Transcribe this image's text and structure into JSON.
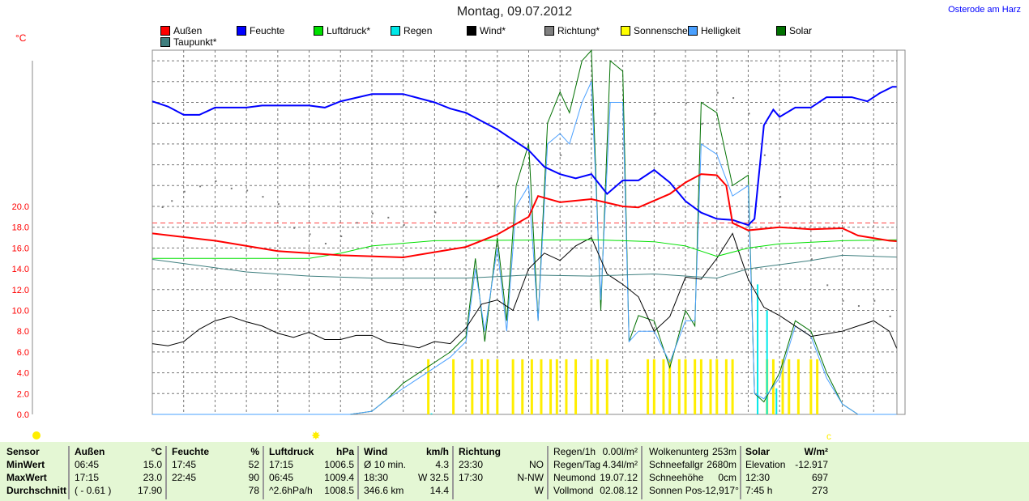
{
  "title": "Montag, 09.07.2012",
  "location": "Osterode am Harz",
  "chart_data": {
    "type": "line",
    "ylabel": "°C",
    "ylim": [
      0,
      35
    ],
    "xlim_hours": [
      0,
      24
    ],
    "yticks": [
      "0.0",
      "2.0",
      "4.0",
      "6.0",
      "8.0",
      "10.0",
      "12.0",
      "14.0",
      "16.0",
      "18.0",
      "20.0"
    ],
    "reference_line": 18.4,
    "legend": [
      {
        "name": "Außen",
        "color": "#ff0000"
      },
      {
        "name": "Feuchte",
        "color": "#0000ff"
      },
      {
        "name": "Luftdruck*",
        "color": "#00e000"
      },
      {
        "name": "Regen",
        "color": "#00e8e8"
      },
      {
        "name": "Wind*",
        "color": "#000000"
      },
      {
        "name": "Richtung*",
        "color": "#808080"
      },
      {
        "name": "Sonnenschein",
        "color": "#ffff00"
      },
      {
        "name": "Helligkeit",
        "color": "#4aa0ff"
      },
      {
        "name": "Solar",
        "color": "#007000"
      },
      {
        "name": "Taupunkt*",
        "color": "#3f7f7f"
      }
    ],
    "series": [
      {
        "name": "Außen",
        "color": "#ff0000",
        "width": 2,
        "points": [
          [
            0,
            17.4
          ],
          [
            2,
            16.7
          ],
          [
            4,
            15.7
          ],
          [
            6,
            15.3
          ],
          [
            8,
            15.1
          ],
          [
            10,
            16.1
          ],
          [
            11,
            17.3
          ],
          [
            12,
            19.0
          ],
          [
            12.3,
            21
          ],
          [
            13,
            20.4
          ],
          [
            14,
            20.7
          ],
          [
            15,
            20.0
          ],
          [
            15.5,
            19.9
          ],
          [
            16.5,
            21.2
          ],
          [
            17,
            22.3
          ],
          [
            17.5,
            23.1
          ],
          [
            18,
            23
          ],
          [
            18.3,
            22
          ],
          [
            18.5,
            18.4
          ],
          [
            19,
            17.7
          ],
          [
            20,
            18.0
          ],
          [
            21,
            17.8
          ],
          [
            22,
            17.9
          ],
          [
            22.5,
            17.2
          ],
          [
            23.5,
            16.7
          ],
          [
            24,
            16.6
          ]
        ]
      },
      {
        "name": "Feuchte",
        "color": "#0000ff",
        "width": 2,
        "points": [
          [
            0,
            30.1
          ],
          [
            0.5,
            29.6
          ],
          [
            1,
            28.8
          ],
          [
            1.5,
            28.8
          ],
          [
            2,
            29.5
          ],
          [
            3,
            29.5
          ],
          [
            3.5,
            29.7
          ],
          [
            5,
            29.7
          ],
          [
            5.5,
            29.5
          ],
          [
            6,
            30.1
          ],
          [
            7,
            30.8
          ],
          [
            8,
            30.8
          ],
          [
            8.5,
            30.4
          ],
          [
            9,
            30.0
          ],
          [
            9.5,
            29.4
          ],
          [
            10,
            29.0
          ],
          [
            10.5,
            28.2
          ],
          [
            11,
            27.4
          ],
          [
            12,
            25.4
          ],
          [
            12.5,
            23.8
          ],
          [
            13,
            23.1
          ],
          [
            13.5,
            22.7
          ],
          [
            14,
            23.1
          ],
          [
            14.5,
            21.2
          ],
          [
            15,
            22.5
          ],
          [
            15.5,
            22.5
          ],
          [
            16,
            23.5
          ],
          [
            16.5,
            22.3
          ],
          [
            17,
            20.5
          ],
          [
            17.5,
            19.4
          ],
          [
            18,
            18.8
          ],
          [
            18.5,
            18.7
          ],
          [
            19,
            18.2
          ],
          [
            19.2,
            18.8
          ],
          [
            19.5,
            27.8
          ],
          [
            19.8,
            29.3
          ],
          [
            20,
            28.6
          ],
          [
            20.5,
            29.5
          ],
          [
            21,
            29.5
          ],
          [
            21.5,
            30.5
          ],
          [
            22.3,
            30.5
          ],
          [
            22.8,
            30.1
          ],
          [
            23.2,
            30.9
          ],
          [
            23.6,
            31.5
          ],
          [
            24,
            31.5
          ]
        ]
      },
      {
        "name": "Luftdruck*",
        "color": "#00e000",
        "width": 1,
        "points": [
          [
            0,
            15.0
          ],
          [
            5,
            15.0
          ],
          [
            6,
            15.5
          ],
          [
            7,
            16.2
          ],
          [
            9,
            16.7
          ],
          [
            14,
            16.8
          ],
          [
            16,
            16.6
          ],
          [
            17,
            16.2
          ],
          [
            18,
            15.2
          ],
          [
            19,
            16.0
          ],
          [
            20,
            16.4
          ],
          [
            22,
            16.7
          ],
          [
            24,
            16.8
          ]
        ]
      },
      {
        "name": "Taupunkt*",
        "color": "#3f7f7f",
        "width": 1,
        "points": [
          [
            0,
            14.9
          ],
          [
            1,
            14.5
          ],
          [
            3,
            13.7
          ],
          [
            5,
            13.3
          ],
          [
            7,
            13.1
          ],
          [
            10,
            13.1
          ],
          [
            12,
            13.4
          ],
          [
            14,
            13.3
          ],
          [
            16,
            13.5
          ],
          [
            18,
            13.1
          ],
          [
            19,
            14.0
          ],
          [
            21,
            14.8
          ],
          [
            22,
            15.3
          ],
          [
            24,
            15.1
          ]
        ]
      },
      {
        "name": "Wind*",
        "color": "#000000",
        "width": 1,
        "points": [
          [
            0,
            6.8
          ],
          [
            0.5,
            6.6
          ],
          [
            1,
            7.0
          ],
          [
            1.5,
            8.2
          ],
          [
            2,
            9.0
          ],
          [
            2.5,
            9.4
          ],
          [
            3,
            8.9
          ],
          [
            3.5,
            8.5
          ],
          [
            4,
            7.8
          ],
          [
            4.5,
            7.4
          ],
          [
            5,
            7.9
          ],
          [
            5.5,
            7.2
          ],
          [
            6,
            7.2
          ],
          [
            6.5,
            7.6
          ],
          [
            7,
            7.6
          ],
          [
            7.5,
            6.9
          ],
          [
            8,
            6.7
          ],
          [
            8.5,
            6.4
          ],
          [
            9,
            7.0
          ],
          [
            9.5,
            6.8
          ],
          [
            10,
            8.3
          ],
          [
            10.5,
            10.6
          ],
          [
            11,
            11.0
          ],
          [
            11.5,
            10.0
          ],
          [
            12,
            14.0
          ],
          [
            12.5,
            15.5
          ],
          [
            13,
            14.8
          ],
          [
            13.5,
            16.2
          ],
          [
            14,
            17.0
          ],
          [
            14.5,
            13.5
          ],
          [
            15,
            12.5
          ],
          [
            15.5,
            11.3
          ],
          [
            16,
            8.0
          ],
          [
            16.5,
            9.4
          ],
          [
            17,
            13.2
          ],
          [
            17.5,
            13.0
          ],
          [
            18,
            15.0
          ],
          [
            18.5,
            17.4
          ],
          [
            19,
            13.0
          ],
          [
            19.5,
            10.3
          ],
          [
            20,
            9.5
          ],
          [
            20.5,
            8.5
          ],
          [
            21,
            7.5
          ],
          [
            22,
            8.0
          ],
          [
            22.5,
            8.5
          ],
          [
            23,
            9.0
          ],
          [
            23.5,
            8.0
          ],
          [
            24,
            4.5
          ]
        ]
      },
      {
        "name": "Helligkeit",
        "color": "#4aa0ff",
        "width": 1,
        "points": [
          [
            0,
            0
          ],
          [
            6.3,
            0
          ],
          [
            7,
            0.3
          ],
          [
            7.5,
            1.5
          ],
          [
            8,
            2.5
          ],
          [
            8.5,
            3.5
          ],
          [
            9,
            4.5
          ],
          [
            9.5,
            5.5
          ],
          [
            10,
            7
          ],
          [
            10.3,
            14
          ],
          [
            10.6,
            8
          ],
          [
            11,
            16
          ],
          [
            11.3,
            8
          ],
          [
            11.6,
            20
          ],
          [
            12,
            22
          ],
          [
            12.3,
            9
          ],
          [
            12.6,
            26
          ],
          [
            13,
            27
          ],
          [
            13.3,
            26
          ],
          [
            13.7,
            30
          ],
          [
            14,
            32
          ],
          [
            14.3,
            11
          ],
          [
            14.6,
            30
          ],
          [
            15,
            30
          ],
          [
            15.2,
            7
          ],
          [
            15.5,
            8
          ],
          [
            16,
            8
          ],
          [
            16.5,
            5
          ],
          [
            17,
            9
          ],
          [
            17.3,
            9
          ],
          [
            17.5,
            26
          ],
          [
            18,
            25
          ],
          [
            18.5,
            21
          ],
          [
            19,
            22
          ],
          [
            19.2,
            2
          ],
          [
            19.5,
            1.5
          ],
          [
            20,
            3.5
          ],
          [
            20.5,
            8.5
          ],
          [
            21,
            7.5
          ],
          [
            21.5,
            3.5
          ],
          [
            22,
            1
          ],
          [
            22.5,
            0
          ],
          [
            24,
            0
          ]
        ]
      },
      {
        "name": "Solar",
        "color": "#007000",
        "width": 1,
        "points": [
          [
            0,
            0
          ],
          [
            6.3,
            0
          ],
          [
            7,
            0.3
          ],
          [
            7.5,
            1.5
          ],
          [
            8,
            3
          ],
          [
            8.5,
            4
          ],
          [
            9,
            5
          ],
          [
            9.5,
            6
          ],
          [
            10,
            7.5
          ],
          [
            10.3,
            15
          ],
          [
            10.6,
            7
          ],
          [
            11,
            17
          ],
          [
            11.3,
            9
          ],
          [
            11.6,
            22
          ],
          [
            12,
            26
          ],
          [
            12.3,
            9
          ],
          [
            12.6,
            28
          ],
          [
            13,
            31
          ],
          [
            13.3,
            29
          ],
          [
            13.7,
            34
          ],
          [
            14,
            35
          ],
          [
            14.3,
            10
          ],
          [
            14.6,
            34
          ],
          [
            15,
            33
          ],
          [
            15.2,
            7
          ],
          [
            15.5,
            9.5
          ],
          [
            16,
            9
          ],
          [
            16.5,
            4.5
          ],
          [
            17,
            10
          ],
          [
            17.3,
            8.5
          ],
          [
            17.5,
            30
          ],
          [
            18,
            29
          ],
          [
            18.5,
            22
          ],
          [
            19,
            23
          ],
          [
            19.2,
            2
          ],
          [
            19.5,
            1.2
          ],
          [
            20,
            4
          ],
          [
            20.5,
            9
          ],
          [
            21,
            8
          ],
          [
            21.5,
            4
          ],
          [
            22,
            1
          ],
          [
            22.5,
            0
          ],
          [
            24,
            0
          ]
        ]
      }
    ],
    "rain_bars": [
      [
        8.9,
        0.1
      ],
      [
        19.3,
        12.5
      ],
      [
        19.6,
        10
      ],
      [
        19.9,
        2.5
      ]
    ],
    "sunshine_bars": [
      8.8,
      9.6,
      10.2,
      10.5,
      10.7,
      11.0,
      11.5,
      11.8,
      12.1,
      12.4,
      12.7,
      12.9,
      13.2,
      13.5,
      14.0,
      14.2,
      14.5,
      15.8,
      16.0,
      16.3,
      16.5,
      16.8,
      17.0,
      17.3,
      17.5,
      17.8,
      18.0,
      18.3,
      18.5,
      19.6,
      19.8,
      20.1,
      20.3,
      20.6,
      21.0,
      21.2
    ],
    "sunshine_height": 5.3,
    "direction_points": [
      [
        0.3,
        20
      ],
      [
        0.6,
        20.6
      ],
      [
        1,
        21.5
      ],
      [
        1.5,
        22
      ],
      [
        2,
        22.5
      ],
      [
        2.5,
        21.8
      ],
      [
        3,
        21.6
      ],
      [
        3.5,
        21
      ],
      [
        4,
        20.3
      ],
      [
        4.5,
        18
      ],
      [
        5,
        17.4
      ],
      [
        5.5,
        16.5
      ],
      [
        6,
        17.2
      ],
      [
        6.5,
        18.5
      ],
      [
        7,
        19.4
      ],
      [
        7.5,
        19
      ],
      [
        8,
        18.3
      ],
      [
        9,
        19.5
      ],
      [
        10,
        21
      ],
      [
        11,
        22
      ],
      [
        12,
        24
      ],
      [
        13,
        25
      ],
      [
        14,
        27
      ],
      [
        15,
        26
      ],
      [
        16,
        29
      ],
      [
        17,
        30
      ],
      [
        17.5,
        28
      ],
      [
        18,
        31
      ],
      [
        18.5,
        30.5
      ],
      [
        19,
        29
      ],
      [
        19.5,
        25
      ],
      [
        20,
        21
      ],
      [
        20.5,
        18
      ],
      [
        21,
        15
      ],
      [
        21.5,
        12.5
      ],
      [
        22,
        11
      ],
      [
        22.5,
        10.5
      ],
      [
        23,
        11
      ],
      [
        23.5,
        9.5
      ]
    ]
  },
  "table": {
    "sensor": {
      "h": "Sensor",
      "r": [
        "MinWert",
        "MaxWert",
        "Durchschnitt"
      ]
    },
    "aussen": {
      "h": "Außen",
      "u": "°C",
      "r": [
        [
          "06:45",
          "15.0"
        ],
        [
          "17:15",
          "23.0"
        ],
        [
          "( - 0.61 )",
          "17.90"
        ]
      ]
    },
    "feuchte": {
      "h": "Feuchte",
      "u": "%",
      "r": [
        [
          "17:45",
          "52"
        ],
        [
          "22:45",
          "90"
        ],
        [
          "",
          "78"
        ]
      ]
    },
    "luftdruck": {
      "h": "Luftdruck",
      "u": "hPa",
      "r": [
        [
          "17:15",
          "1006.5"
        ],
        [
          "06:45",
          "1009.4"
        ],
        [
          "^2.6hPa/h",
          "1008.5"
        ]
      ]
    },
    "wind": {
      "h": "Wind",
      "u": "km/h",
      "r": [
        [
          "Ø 10 min.",
          "4.3"
        ],
        [
          "18:30",
          "W 32.5"
        ],
        [
          "346.6 km",
          "14.4"
        ]
      ]
    },
    "richtung": {
      "h": "Richtung",
      "u": "",
      "r": [
        [
          "23:30",
          "NO"
        ],
        [
          "17:30",
          "N-NW"
        ],
        [
          "",
          "W"
        ]
      ]
    },
    "regen": [
      [
        "Regen/1h",
        "0.00l/m²"
      ],
      [
        "Regen/Tag",
        "4.34l/m²"
      ],
      [
        "Neumond",
        "19.07.12"
      ],
      [
        "Vollmond",
        "02.08.12"
      ]
    ],
    "wolken": [
      [
        "Wolkenunterg",
        "253m"
      ],
      [
        "Schneefallgr",
        "2680m"
      ],
      [
        "Schneehöhe",
        "0cm"
      ],
      [
        "Sonnen Pos",
        "-12,917°"
      ]
    ],
    "solar": {
      "h": "Solar",
      "u": "W/m²",
      "r": [
        [
          "Elevation",
          "-12.917"
        ],
        [
          "12:30",
          "697"
        ],
        [
          "7:45 h",
          "273"
        ]
      ]
    }
  }
}
